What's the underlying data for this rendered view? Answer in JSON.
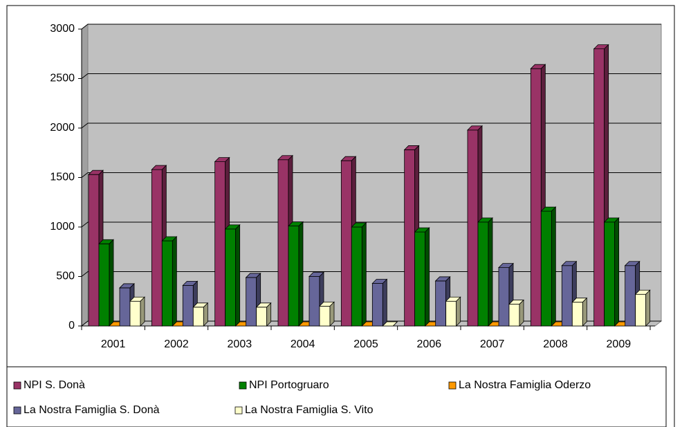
{
  "chart_data": {
    "type": "bar3d",
    "categories": [
      "2001",
      "2002",
      "2003",
      "2004",
      "2005",
      "2006",
      "2007",
      "2008",
      "2009"
    ],
    "series": [
      {
        "name": "NPI S. Donà",
        "color": "#993366",
        "values": [
          1530,
          1580,
          1660,
          1680,
          1670,
          1780,
          1980,
          2600,
          2800
        ]
      },
      {
        "name": "NPI Portogruaro",
        "color": "#008000",
        "values": [
          830,
          860,
          980,
          1010,
          1000,
          950,
          1050,
          1160,
          1050
        ]
      },
      {
        "name": "La Nostra Famiglia Oderzo",
        "color": "#ff9900",
        "values": [
          0,
          0,
          0,
          0,
          0,
          0,
          0,
          0,
          0
        ]
      },
      {
        "name": "La Nostra Famiglia S. Donà",
        "color": "#666699",
        "values": [
          385,
          410,
          490,
          500,
          430,
          455,
          590,
          610,
          610
        ]
      },
      {
        "name": "La Nostra Famiglia S. Vito",
        "color": "#ffffcc",
        "values": [
          250,
          190,
          190,
          200,
          0,
          250,
          220,
          240,
          320
        ]
      }
    ],
    "ylim": [
      0,
      3000
    ],
    "yticks": [
      0,
      500,
      1000,
      1500,
      2000,
      2500,
      3000
    ],
    "grid": true,
    "legend": "bottom"
  }
}
